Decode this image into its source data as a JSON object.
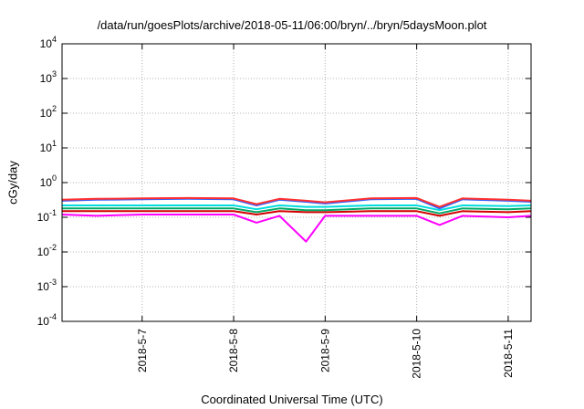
{
  "chart_data": {
    "type": "line",
    "title": "/data/run/goesPlots/archive/2018-05-11/06:00/bryn/../bryn/5daysMoon.plot",
    "xlabel": "Coordinated Universal Time (UTC)",
    "ylabel": "cGy/day",
    "yscale": "log",
    "ylim": [
      0.0001,
      10000
    ],
    "xlim_days": [
      "2018-05-06 03:00",
      "2018-05-11 06:00"
    ],
    "x_ticks": [
      "2018-5-7",
      "2018-5-8",
      "2018-5-9",
      "2018-5-10",
      "2018-5-11"
    ],
    "y_ticks": [
      {
        "base": "10",
        "exp": "-4"
      },
      {
        "base": "10",
        "exp": "-3"
      },
      {
        "base": "10",
        "exp": "-2"
      },
      {
        "base": "10",
        "exp": "-1"
      },
      {
        "base": "10",
        "exp": "0"
      },
      {
        "base": "10",
        "exp": "1"
      },
      {
        "base": "10",
        "exp": "2"
      },
      {
        "base": "10",
        "exp": "3"
      },
      {
        "base": "10",
        "exp": "4"
      }
    ],
    "grid": true,
    "series": [
      {
        "color": "#ff00ff",
        "x": [
          "2018-05-06 03:00",
          "2018-05-06 12:00",
          "2018-05-07 00:00",
          "2018-05-07 12:00",
          "2018-05-08 00:00",
          "2018-05-08 06:00",
          "2018-05-08 12:00",
          "2018-05-08 19:00",
          "2018-05-09 00:00",
          "2018-05-09 12:00",
          "2018-05-10 00:00",
          "2018-05-10 06:00",
          "2018-05-10 12:00",
          "2018-05-11 00:00",
          "2018-05-11 06:00"
        ],
        "values": [
          0.12,
          0.11,
          0.12,
          0.12,
          0.12,
          0.07,
          0.11,
          0.02,
          0.11,
          0.11,
          0.11,
          0.06,
          0.11,
          0.1,
          0.11
        ]
      },
      {
        "color": "#d40000",
        "x": [
          "2018-05-06 03:00",
          "2018-05-06 12:00",
          "2018-05-07 00:00",
          "2018-05-07 12:00",
          "2018-05-08 00:00",
          "2018-05-08 06:00",
          "2018-05-08 12:00",
          "2018-05-08 19:00",
          "2018-05-09 00:00",
          "2018-05-09 12:00",
          "2018-05-10 00:00",
          "2018-05-10 06:00",
          "2018-05-10 12:00",
          "2018-05-11 00:00",
          "2018-05-11 06:00"
        ],
        "values": [
          0.15,
          0.15,
          0.15,
          0.15,
          0.15,
          0.12,
          0.15,
          0.14,
          0.14,
          0.15,
          0.15,
          0.11,
          0.15,
          0.14,
          0.15
        ]
      },
      {
        "color": "#00aa66",
        "x": [
          "2018-05-06 03:00",
          "2018-05-06 12:00",
          "2018-05-07 00:00",
          "2018-05-07 12:00",
          "2018-05-08 00:00",
          "2018-05-08 06:00",
          "2018-05-08 12:00",
          "2018-05-08 19:00",
          "2018-05-09 00:00",
          "2018-05-09 12:00",
          "2018-05-10 00:00",
          "2018-05-10 06:00",
          "2018-05-10 12:00",
          "2018-05-11 00:00",
          "2018-05-11 06:00"
        ],
        "values": [
          0.18,
          0.18,
          0.18,
          0.18,
          0.18,
          0.14,
          0.18,
          0.16,
          0.16,
          0.18,
          0.18,
          0.13,
          0.18,
          0.17,
          0.18
        ]
      },
      {
        "color": "#00dddd",
        "x": [
          "2018-05-06 03:00",
          "2018-05-06 12:00",
          "2018-05-07 00:00",
          "2018-05-07 12:00",
          "2018-05-08 00:00",
          "2018-05-08 06:00",
          "2018-05-08 12:00",
          "2018-05-08 19:00",
          "2018-05-09 00:00",
          "2018-05-09 12:00",
          "2018-05-10 00:00",
          "2018-05-10 06:00",
          "2018-05-10 12:00",
          "2018-05-11 00:00",
          "2018-05-11 06:00"
        ],
        "values": [
          0.22,
          0.22,
          0.22,
          0.22,
          0.22,
          0.17,
          0.22,
          0.2,
          0.2,
          0.22,
          0.22,
          0.16,
          0.22,
          0.21,
          0.22
        ]
      },
      {
        "color": "#3060ff",
        "x": [
          "2018-05-06 03:00",
          "2018-05-06 12:00",
          "2018-05-07 00:00",
          "2018-05-07 12:00",
          "2018-05-08 00:00",
          "2018-05-08 06:00",
          "2018-05-08 12:00",
          "2018-05-08 19:00",
          "2018-05-09 00:00",
          "2018-05-09 12:00",
          "2018-05-10 00:00",
          "2018-05-10 06:00",
          "2018-05-10 12:00",
          "2018-05-11 00:00",
          "2018-05-11 06:00"
        ],
        "values": [
          0.3,
          0.32,
          0.33,
          0.34,
          0.33,
          0.22,
          0.32,
          0.28,
          0.25,
          0.33,
          0.34,
          0.18,
          0.33,
          0.3,
          0.28
        ]
      },
      {
        "color": "#ff3030",
        "x": [
          "2018-05-06 03:00",
          "2018-05-06 12:00",
          "2018-05-07 00:00",
          "2018-05-07 12:00",
          "2018-05-08 00:00",
          "2018-05-08 06:00",
          "2018-05-08 12:00",
          "2018-05-08 19:00",
          "2018-05-09 00:00",
          "2018-05-09 12:00",
          "2018-05-10 00:00",
          "2018-05-10 06:00",
          "2018-05-10 12:00",
          "2018-05-11 00:00",
          "2018-05-11 06:00"
        ],
        "values": [
          0.32,
          0.34,
          0.35,
          0.36,
          0.35,
          0.24,
          0.34,
          0.3,
          0.27,
          0.35,
          0.36,
          0.2,
          0.35,
          0.32,
          0.3
        ]
      }
    ]
  }
}
